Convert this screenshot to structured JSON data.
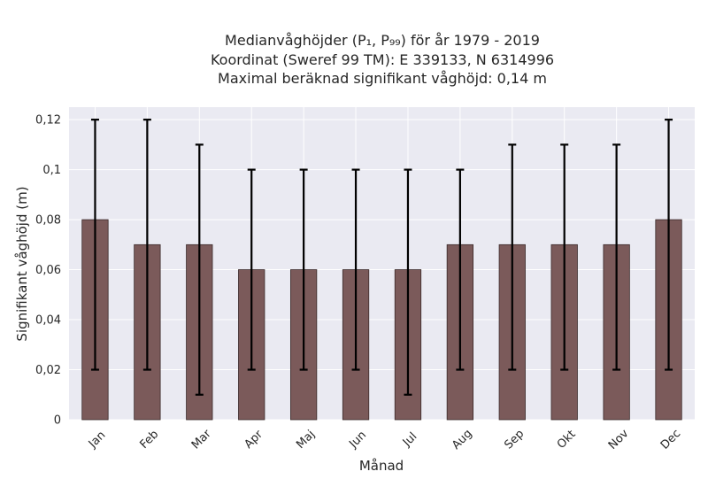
{
  "chart_data": {
    "type": "bar",
    "title_lines": [
      "Medianvåghöjder (P₁, P₉₉) för år 1979 - 2019",
      "Koordinat (Sweref 99 TM): E 339133, N 6314996",
      "Maximal beräknad signifikant våghöjd: 0,14 m"
    ],
    "xlabel": "Månad",
    "ylabel": "Signifikant våghöjd (m)",
    "categories": [
      "Jan",
      "Feb",
      "Mar",
      "Apr",
      "Maj",
      "Jun",
      "Jul",
      "Aug",
      "Sep",
      "Okt",
      "Nov",
      "Dec"
    ],
    "values": [
      0.08,
      0.07,
      0.07,
      0.06,
      0.06,
      0.06,
      0.06,
      0.07,
      0.07,
      0.07,
      0.07,
      0.08
    ],
    "error_low": [
      0.02,
      0.02,
      0.01,
      0.02,
      0.02,
      0.02,
      0.01,
      0.02,
      0.02,
      0.02,
      0.02,
      0.02
    ],
    "error_high": [
      0.12,
      0.12,
      0.11,
      0.1,
      0.1,
      0.1,
      0.1,
      0.1,
      0.11,
      0.11,
      0.11,
      0.12
    ],
    "ylim": [
      0,
      0.125
    ],
    "yticks": [
      0,
      0.02,
      0.04,
      0.06,
      0.08,
      0.1,
      0.12
    ],
    "ytick_labels": [
      "0",
      "0,02",
      "0,04",
      "0,06",
      "0,08",
      "0,1",
      "0,12"
    ],
    "grid": true,
    "colors": {
      "bar": "#7b5a5a",
      "bar_edge": "#3a2a2a",
      "errorbar": "#000000",
      "plot_background": "#eaeaf2",
      "grid": "#ffffff",
      "text": "#262626"
    }
  }
}
